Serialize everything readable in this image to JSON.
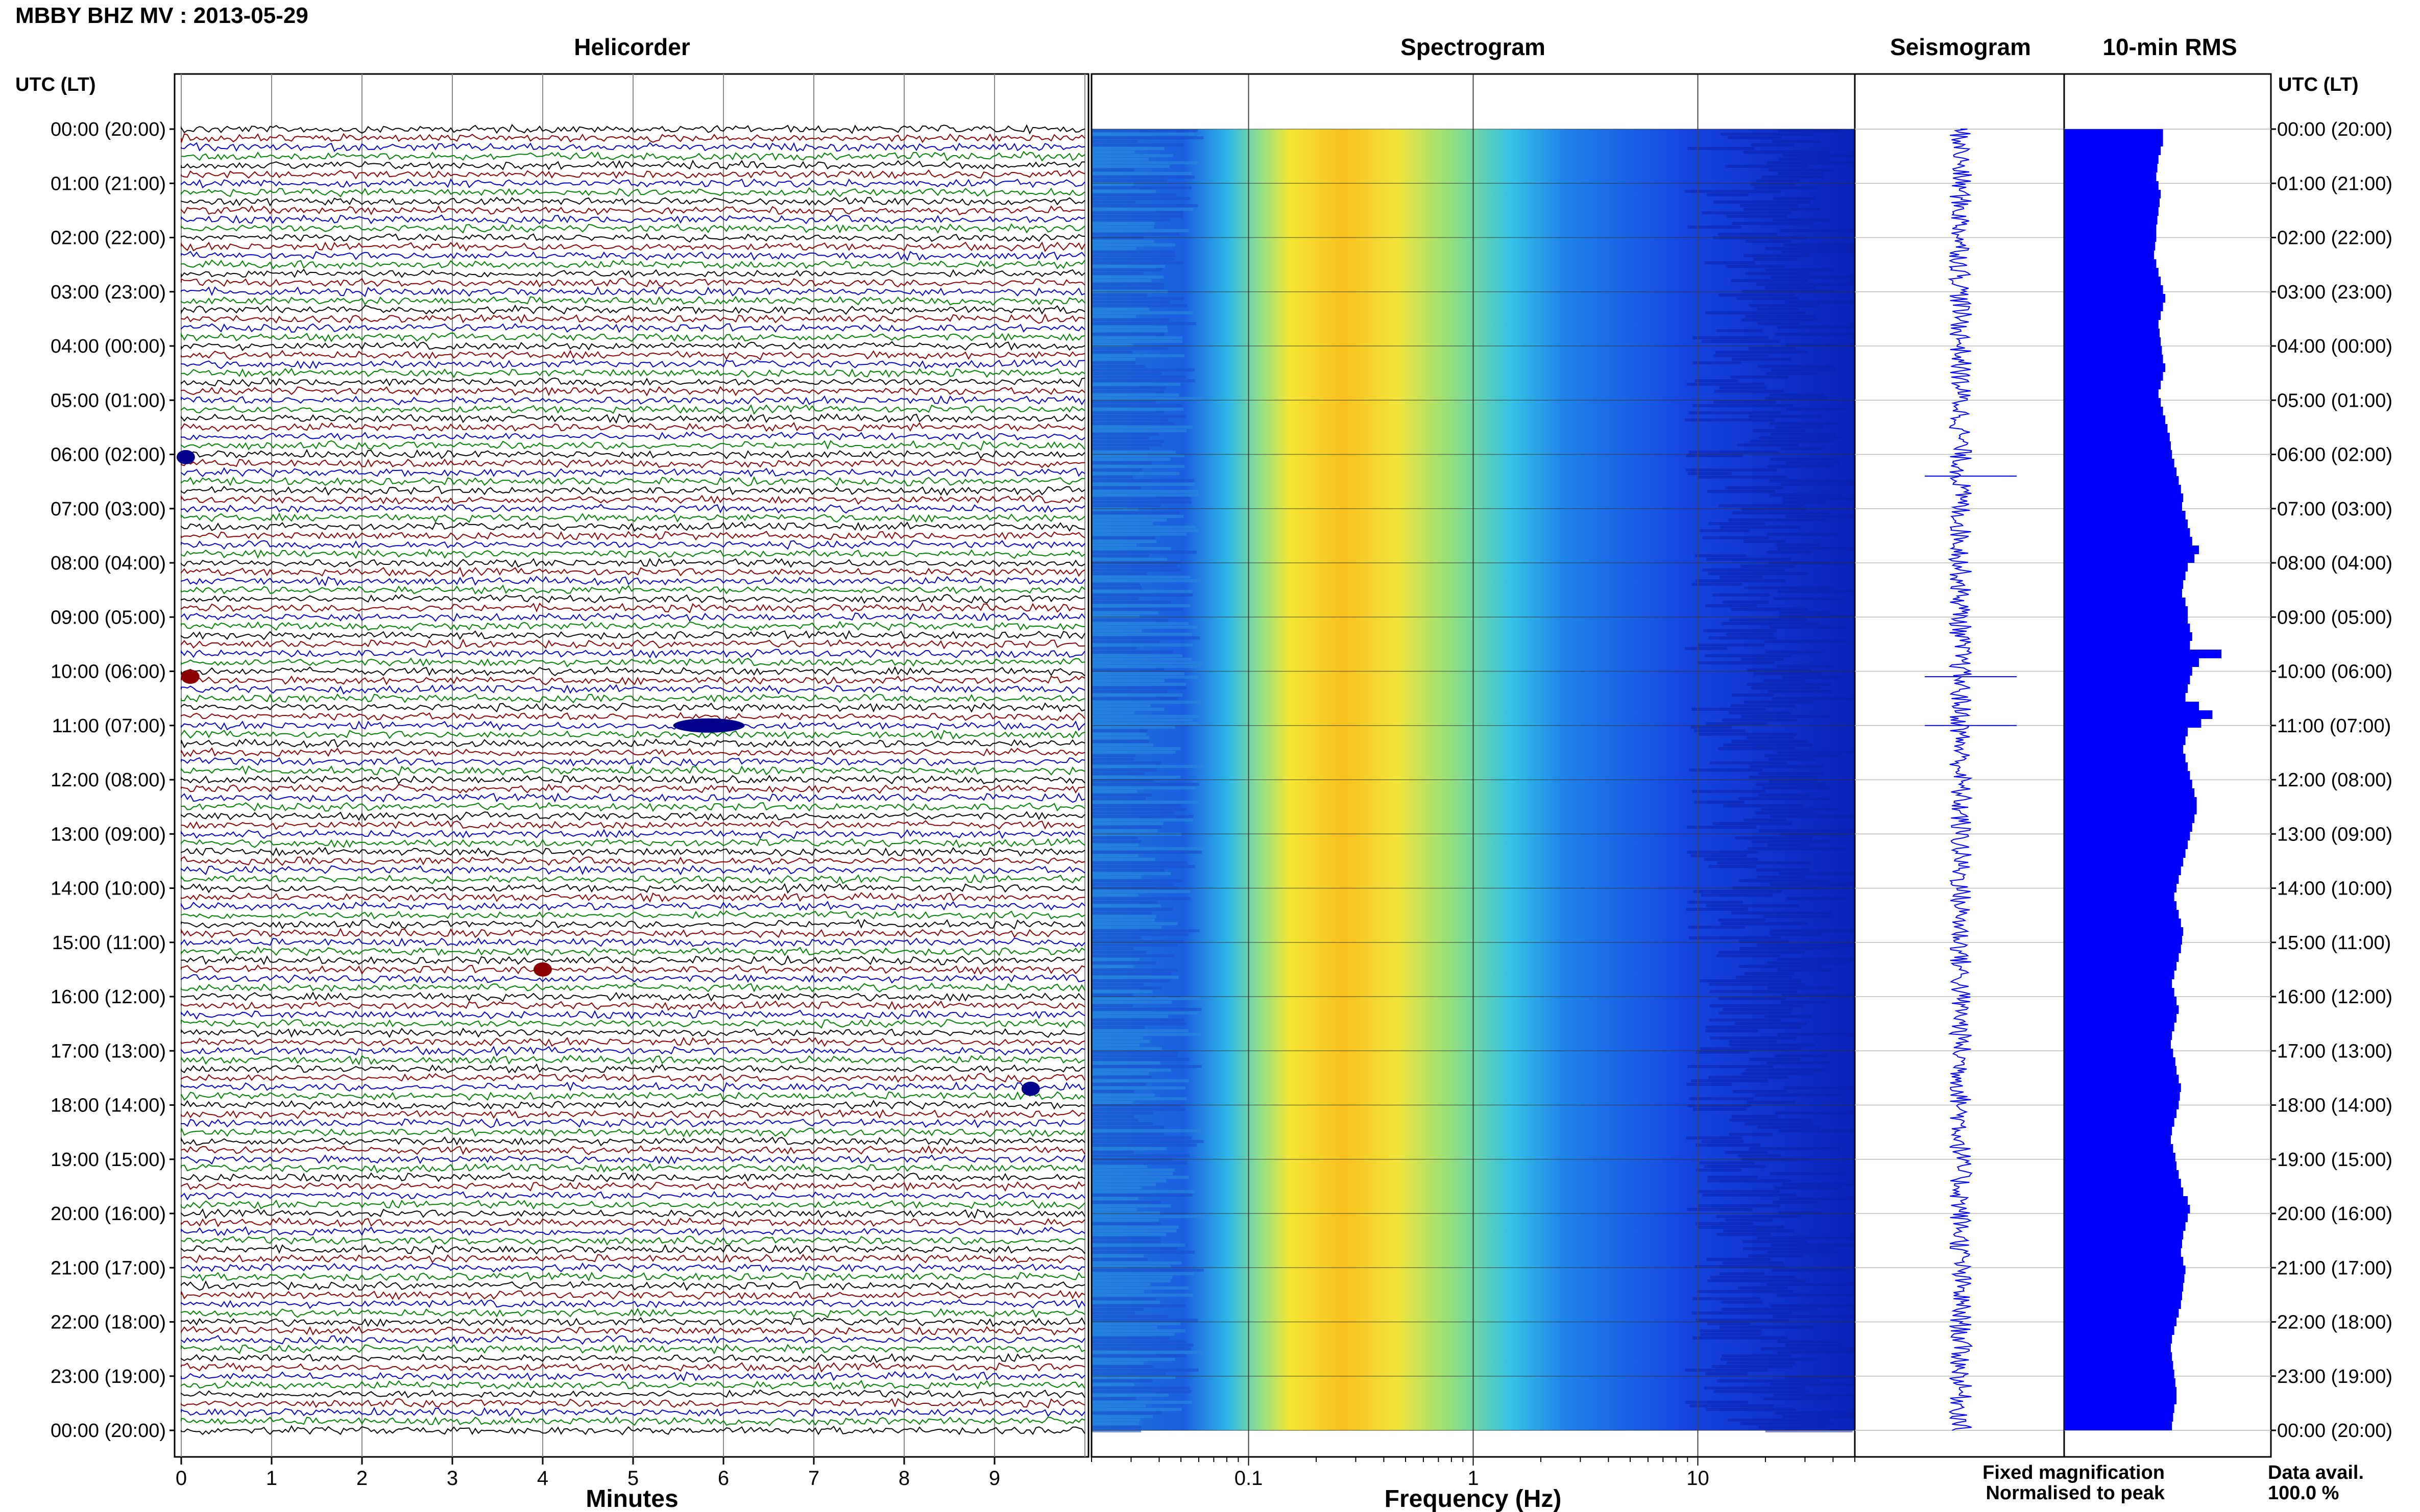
{
  "header": {
    "station_title": "MBBY BHZ MV : 2013-05-29"
  },
  "panels": {
    "helicorder_title": "Helicorder",
    "spectrogram_title": "Spectrogram",
    "seismogram_title": "Seismogram",
    "rms_title": "10-min RMS"
  },
  "axes": {
    "left_time_label": "UTC (LT)",
    "right_time_label": "UTC (LT)",
    "time_ticks": [
      "00:00 (20:00)",
      "01:00 (21:00)",
      "02:00 (22:00)",
      "03:00 (23:00)",
      "04:00 (00:00)",
      "05:00 (01:00)",
      "06:00 (02:00)",
      "07:00 (03:00)",
      "08:00 (04:00)",
      "09:00 (05:00)",
      "10:00 (06:00)",
      "11:00 (07:00)",
      "12:00 (08:00)",
      "13:00 (09:00)",
      "14:00 (10:00)",
      "15:00 (11:00)",
      "16:00 (12:00)",
      "17:00 (13:00)",
      "18:00 (14:00)",
      "19:00 (15:00)",
      "20:00 (16:00)",
      "21:00 (17:00)",
      "22:00 (18:00)",
      "23:00 (19:00)",
      "00:00 (20:00)"
    ],
    "minutes_label": "Minutes",
    "minute_ticks": [
      "0",
      "1",
      "2",
      "3",
      "4",
      "5",
      "6",
      "7",
      "8",
      "9"
    ],
    "frequency_label": "Frequency (Hz)",
    "frequency_ticks": [
      "0.1",
      "1",
      "10"
    ]
  },
  "legend": {
    "fixed_magnification": "Fixed magnification",
    "normalised_to_peak": "Normalised to peak",
    "fixed_color": "#0000ff",
    "normalised_color": "#ff0000",
    "data_avail_label": "Data avail.",
    "data_avail_value": "100.0 %"
  },
  "chart_data": [
    {
      "type": "line",
      "name": "Helicorder",
      "xlabel": "Minutes",
      "xlim": [
        0,
        10
      ],
      "ylim_hours_utc": [
        0,
        24
      ],
      "trace_colors": [
        "#000000",
        "#8b0000",
        "#0000cd",
        "#008000"
      ],
      "traces_per_hour": 6,
      "notable_events_hour_utc": [
        6.05,
        10.1,
        11.0,
        15.5,
        17.7
      ]
    },
    {
      "type": "heatmap",
      "name": "Spectrogram",
      "xlabel": "Frequency (Hz)",
      "x_scale": "log",
      "xlim": [
        0.02,
        50
      ],
      "ylim_hours_utc": [
        0,
        24
      ],
      "peak_band_hz": [
        0.2,
        0.5
      ]
    },
    {
      "type": "line",
      "name": "Seismogram",
      "ylim_hours_utc": [
        0,
        24
      ],
      "spikes_hour_utc": [
        6.4,
        10.1,
        11.0
      ]
    },
    {
      "type": "bar",
      "name": "10-min RMS",
      "orientation": "horizontal",
      "bar_color": "#0000ff",
      "ylim_hours_utc": [
        0,
        24
      ],
      "values": [
        0.88,
        0.88,
        0.86,
        0.84,
        0.83,
        0.82,
        0.84,
        0.86,
        0.85,
        0.84,
        0.83,
        0.82,
        0.82,
        0.81,
        0.8,
        0.82,
        0.84,
        0.86,
        0.88,
        0.9,
        0.88,
        0.86,
        0.84,
        0.85,
        0.86,
        0.87,
        0.88,
        0.9,
        0.88,
        0.86,
        0.84,
        0.86,
        0.88,
        0.9,
        0.92,
        0.94,
        0.95,
        0.96,
        0.98,
        1.0,
        1.02,
        1.04,
        1.06,
        1.05,
        1.08,
        1.1,
        1.12,
        1.14,
        1.2,
        1.16,
        1.1,
        1.08,
        1.06,
        1.05,
        1.08,
        1.1,
        1.1,
        1.12,
        1.14,
        1.12,
        1.4,
        1.2,
        1.14,
        1.12,
        1.1,
        1.08,
        1.2,
        1.32,
        1.22,
        1.1,
        1.08,
        1.06,
        1.08,
        1.1,
        1.12,
        1.14,
        1.16,
        1.18,
        1.18,
        1.16,
        1.14,
        1.12,
        1.1,
        1.08,
        1.06,
        1.04,
        1.02,
        1.0,
        0.98,
        1.0,
        1.02,
        1.04,
        1.06,
        1.05,
        1.04,
        1.02,
        1.0,
        0.98,
        0.96,
        0.98,
        1.0,
        1.02,
        1.0,
        0.98,
        0.96,
        0.95,
        0.97,
        0.99,
        1.0,
        1.02,
        1.04,
        1.03,
        1.02,
        1.0,
        0.98,
        0.96,
        0.95,
        0.97,
        0.99,
        1.0,
        1.02,
        1.04,
        1.06,
        1.1,
        1.12,
        1.1,
        1.08,
        1.06,
        1.05,
        1.04,
        1.06,
        1.08,
        1.07,
        1.06,
        1.05,
        1.04,
        1.02,
        1.0,
        0.98,
        0.96,
        0.95,
        0.96,
        0.97,
        0.98,
        0.99,
        1.0,
        1.0,
        0.98,
        0.97,
        0.96
      ]
    }
  ]
}
